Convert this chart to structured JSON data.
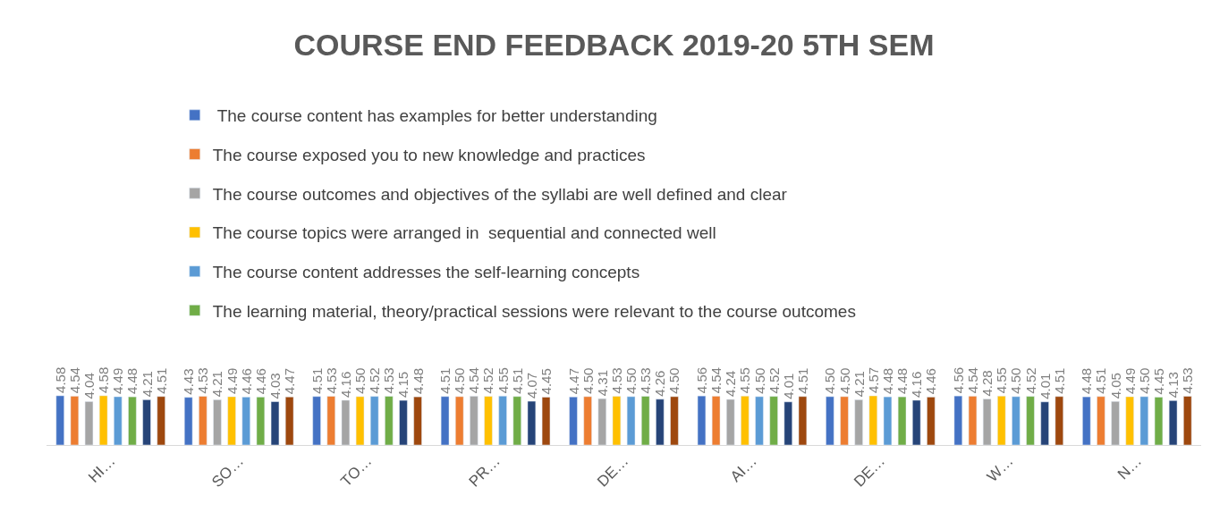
{
  "chart_data": {
    "type": "bar",
    "title": "COURSE END FEEDBACK 2019-20 5TH SEM",
    "categories": [
      "HI…",
      "SO…",
      "TO…",
      "PR…",
      "DE…",
      "AI…",
      "DE…",
      "W…",
      "N…"
    ],
    "legend": "top",
    "series": [
      {
        "name": " The course content has examples for better understanding",
        "color": "#4472c4",
        "values": [
          4.58,
          4.43,
          4.51,
          4.51,
          4.47,
          4.56,
          4.5,
          4.56,
          4.48
        ],
        "value_labels": [
          "4.58",
          "4.43",
          "4.51",
          "4.51",
          "4.47",
          "4.56",
          "4.50",
          "4.56",
          "4.48"
        ]
      },
      {
        "name": "The course exposed you to new knowledge and practices",
        "color": "#ed7d31",
        "values": [
          4.54,
          4.53,
          4.53,
          4.5,
          4.5,
          4.54,
          4.5,
          4.54,
          4.51
        ],
        "value_labels": [
          "4.54",
          "4.53",
          "4.53",
          "4.50",
          "4.50",
          "4.54",
          "4.50",
          "4.54",
          "4.51"
        ]
      },
      {
        "name": "The course outcomes and objectives of the syllabi are well defined and clear",
        "color": "#a5a5a5",
        "values": [
          4.04,
          4.21,
          4.16,
          4.54,
          4.31,
          4.24,
          4.21,
          4.28,
          4.05
        ],
        "value_labels": [
          "4.04",
          "4.21",
          "4.16",
          "4.54",
          "4.31",
          "4.24",
          "4.21",
          "4.28",
          "4.05"
        ]
      },
      {
        "name": "The course topics were arranged in  sequential and connected well",
        "color": "#ffc000",
        "values": [
          4.58,
          4.49,
          4.5,
          4.52,
          4.53,
          4.55,
          4.57,
          4.55,
          4.49
        ],
        "value_labels": [
          "4.58",
          "4.49",
          "4.50",
          "4.52",
          "4.53",
          "4.55",
          "4.57",
          "4.55",
          "4.49"
        ]
      },
      {
        "name": "The course content addresses the self-learning concepts",
        "color": "#5b9bd5",
        "values": [
          4.49,
          4.46,
          4.52,
          4.55,
          4.5,
          4.5,
          4.48,
          4.5,
          4.5
        ],
        "value_labels": [
          "4.49",
          "4.46",
          "4.52",
          "4.55",
          "4.50",
          "4.50",
          "4.48",
          "4.50",
          "4.50"
        ]
      },
      {
        "name": "The learning material, theory/practical sessions were relevant to the course outcomes",
        "color": "#70ad47",
        "values": [
          4.48,
          4.46,
          4.53,
          4.51,
          4.53,
          4.52,
          4.48,
          4.52,
          4.45
        ],
        "value_labels": [
          "4.48",
          "4.46",
          "4.53",
          "4.51",
          "4.53",
          "4.52",
          "4.48",
          "4.52",
          "4.45"
        ]
      },
      {
        "color": "#264478",
        "values": [
          4.21,
          4.03,
          4.15,
          4.07,
          4.26,
          4.01,
          4.16,
          4.01,
          4.13
        ],
        "value_labels": [
          "4.21",
          "4.03",
          "4.15",
          "4.07",
          "4.26",
          "4.01",
          "4.16",
          "4.01",
          "4.13"
        ]
      },
      {
        "color": "#9e480e",
        "values": [
          4.51,
          4.47,
          4.48,
          4.45,
          4.5,
          4.51,
          4.46,
          4.51,
          4.53
        ],
        "value_labels": [
          "4.51",
          "4.47",
          "4.48",
          "4.45",
          "4.50",
          "4.51",
          "4.46",
          "4.51",
          "4.53"
        ]
      }
    ]
  }
}
